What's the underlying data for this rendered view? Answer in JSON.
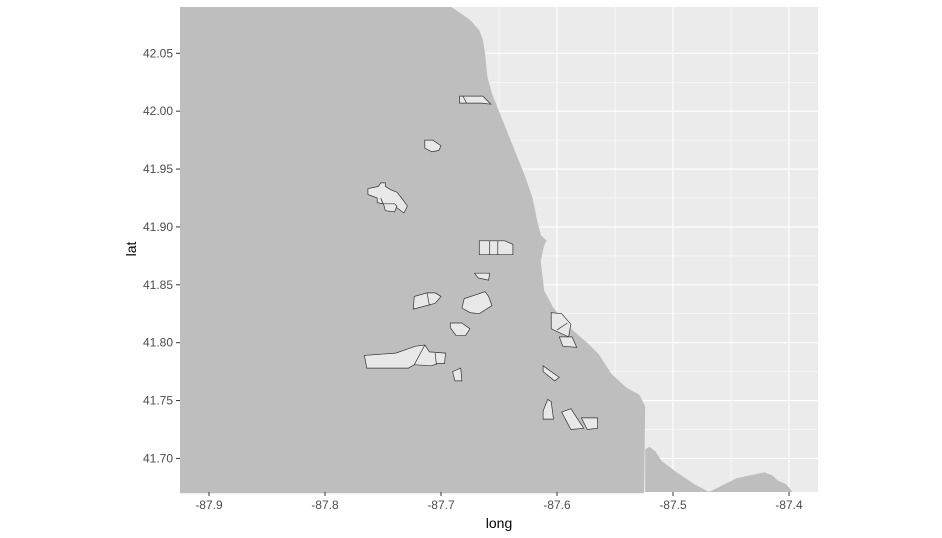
{
  "chart_data": {
    "type": "map",
    "title": "",
    "xlabel": "long",
    "ylabel": "lat",
    "xlim": [
      -87.925,
      -87.375
    ],
    "ylim": [
      41.671,
      42.09
    ],
    "x_ticks": [
      -87.9,
      -87.8,
      -87.7,
      -87.6,
      -87.5,
      -87.4
    ],
    "x_tick_labels": [
      "-87.9",
      "-87.8",
      "-87.7",
      "-87.6",
      "-87.5",
      "-87.4"
    ],
    "y_ticks": [
      41.7,
      41.75,
      41.8,
      41.85,
      41.9,
      41.95,
      42.0,
      42.05
    ],
    "y_tick_labels": [
      "41.70",
      "41.75",
      "41.80",
      "41.85",
      "41.90",
      "41.95",
      "42.00",
      "42.05"
    ],
    "grid": true,
    "colors": {
      "panel_background": "#ebebeb",
      "gridline": "#ffffff",
      "land_fill": "#bebebe",
      "region_fill": "#e8e8e8",
      "region_outline": "#333333",
      "tick_label": "#4d4d4d",
      "axis_title": "#000000"
    },
    "land": [
      [
        -87.925,
        42.09
      ],
      [
        -87.691,
        42.09
      ],
      [
        -87.675,
        42.079
      ],
      [
        -87.667,
        42.07
      ],
      [
        -87.664,
        42.062
      ],
      [
        -87.662,
        42.05
      ],
      [
        -87.66,
        42.03
      ],
      [
        -87.656,
        42.015
      ],
      [
        -87.65,
        42.0
      ],
      [
        -87.638,
        41.97
      ],
      [
        -87.628,
        41.945
      ],
      [
        -87.621,
        41.925
      ],
      [
        -87.617,
        41.905
      ],
      [
        -87.614,
        41.893
      ],
      [
        -87.609,
        41.888
      ],
      [
        -87.611,
        41.884
      ],
      [
        -87.612,
        41.88
      ],
      [
        -87.614,
        41.87
      ],
      [
        -87.611,
        41.845
      ],
      [
        -87.603,
        41.83
      ],
      [
        -87.589,
        41.813
      ],
      [
        -87.574,
        41.8
      ],
      [
        -87.564,
        41.79
      ],
      [
        -87.553,
        41.773
      ],
      [
        -87.54,
        41.761
      ],
      [
        -87.529,
        41.755
      ],
      [
        -87.524,
        41.745
      ],
      [
        -87.525,
        41.67
      ],
      [
        -87.925,
        41.67
      ]
    ],
    "second_land": [
      [
        -87.524,
        41.708
      ],
      [
        -87.52,
        41.71
      ],
      [
        -87.515,
        41.706
      ],
      [
        -87.51,
        41.698
      ],
      [
        -87.497,
        41.688
      ],
      [
        -87.482,
        41.678
      ],
      [
        -87.469,
        41.671
      ],
      [
        -87.455,
        41.678
      ],
      [
        -87.445,
        41.683
      ],
      [
        -87.421,
        41.688
      ],
      [
        -87.414,
        41.685
      ],
      [
        -87.41,
        41.681
      ],
      [
        -87.403,
        41.678
      ],
      [
        -87.4,
        41.675
      ],
      [
        -87.397,
        41.671
      ],
      [
        -87.524,
        41.671
      ]
    ],
    "regions": [
      [
        [
          -87.684,
          42.013
        ],
        [
          -87.684,
          42.007
        ],
        [
          -87.665,
          42.007
        ],
        [
          -87.657,
          42.006
        ],
        [
          -87.664,
          42.013
        ]
      ],
      [
        [
          -87.714,
          41.975
        ],
        [
          -87.714,
          41.968
        ],
        [
          -87.708,
          41.965
        ],
        [
          -87.702,
          41.966
        ],
        [
          -87.7,
          41.97
        ],
        [
          -87.707,
          41.975
        ]
      ],
      [
        [
          -87.763,
          41.933
        ],
        [
          -87.763,
          41.928
        ],
        [
          -87.755,
          41.925
        ],
        [
          -87.755,
          41.921
        ],
        [
          -87.75,
          41.92
        ],
        [
          -87.74,
          41.918
        ],
        [
          -87.732,
          41.912
        ],
        [
          -87.729,
          41.918
        ],
        [
          -87.734,
          41.925
        ],
        [
          -87.738,
          41.93
        ],
        [
          -87.743,
          41.932
        ],
        [
          -87.748,
          41.935
        ],
        [
          -87.748,
          41.938
        ],
        [
          -87.752,
          41.938
        ],
        [
          -87.754,
          41.935
        ]
      ],
      [
        [
          -87.752,
          41.925
        ],
        [
          -87.749,
          41.918
        ],
        [
          -87.748,
          41.914
        ],
        [
          -87.74,
          41.913
        ],
        [
          -87.738,
          41.918
        ],
        [
          -87.74,
          41.92
        ],
        [
          -87.75,
          41.92
        ]
      ],
      [
        [
          -87.667,
          41.888
        ],
        [
          -87.667,
          41.876
        ],
        [
          -87.638,
          41.876
        ],
        [
          -87.638,
          41.885
        ],
        [
          -87.645,
          41.888
        ]
      ],
      [
        [
          -87.671,
          41.86
        ],
        [
          -87.668,
          41.856
        ],
        [
          -87.659,
          41.854
        ],
        [
          -87.658,
          41.86
        ]
      ],
      [
        [
          -87.723,
          41.84
        ],
        [
          -87.724,
          41.829
        ],
        [
          -87.705,
          41.834
        ],
        [
          -87.7,
          41.84
        ],
        [
          -87.705,
          41.843
        ],
        [
          -87.712,
          41.843
        ]
      ],
      [
        [
          -87.68,
          41.838
        ],
        [
          -87.682,
          41.83
        ],
        [
          -87.675,
          41.826
        ],
        [
          -87.667,
          41.825
        ],
        [
          -87.656,
          41.832
        ],
        [
          -87.659,
          41.84
        ],
        [
          -87.662,
          41.844
        ]
      ],
      [
        [
          -87.692,
          41.817
        ],
        [
          -87.692,
          41.813
        ],
        [
          -87.687,
          41.806
        ],
        [
          -87.679,
          41.806
        ],
        [
          -87.675,
          41.812
        ],
        [
          -87.682,
          41.817
        ]
      ],
      [
        [
          -87.766,
          41.789
        ],
        [
          -87.764,
          41.778
        ],
        [
          -87.728,
          41.778
        ],
        [
          -87.723,
          41.781
        ],
        [
          -87.708,
          41.78
        ],
        [
          -87.703,
          41.782
        ],
        [
          -87.697,
          41.782
        ],
        [
          -87.696,
          41.791
        ],
        [
          -87.71,
          41.792
        ],
        [
          -87.714,
          41.798
        ],
        [
          -87.722,
          41.797
        ],
        [
          -87.739,
          41.791
        ]
      ],
      [
        [
          -87.69,
          41.775
        ],
        [
          -87.688,
          41.767
        ],
        [
          -87.682,
          41.767
        ],
        [
          -87.683,
          41.778
        ]
      ],
      [
        [
          -87.612,
          41.78
        ],
        [
          -87.612,
          41.775
        ],
        [
          -87.602,
          41.767
        ],
        [
          -87.598,
          41.77
        ]
      ],
      [
        [
          -87.605,
          41.826
        ],
        [
          -87.605,
          41.812
        ],
        [
          -87.59,
          41.805
        ],
        [
          -87.588,
          41.816
        ],
        [
          -87.596,
          41.825
        ]
      ],
      [
        [
          -87.598,
          41.805
        ],
        [
          -87.595,
          41.797
        ],
        [
          -87.583,
          41.796
        ],
        [
          -87.587,
          41.805
        ]
      ],
      [
        [
          -87.612,
          41.741
        ],
        [
          -87.612,
          41.734
        ],
        [
          -87.603,
          41.734
        ],
        [
          -87.605,
          41.749
        ],
        [
          -87.608,
          41.751
        ]
      ],
      [
        [
          -87.596,
          41.74
        ],
        [
          -87.588,
          41.725
        ],
        [
          -87.577,
          41.726
        ],
        [
          -87.588,
          41.743
        ]
      ],
      [
        [
          -87.579,
          41.735
        ],
        [
          -87.574,
          41.725
        ],
        [
          -87.565,
          41.726
        ],
        [
          -87.565,
          41.735
        ]
      ]
    ],
    "region_lines": [
      [
        [
          -87.681,
          42.013
        ],
        [
          -87.678,
          42.007
        ]
      ],
      [
        [
          -87.658,
          41.888
        ],
        [
          -87.658,
          41.876
        ]
      ],
      [
        [
          -87.651,
          41.888
        ],
        [
          -87.651,
          41.876
        ]
      ],
      [
        [
          -87.712,
          41.843
        ],
        [
          -87.71,
          41.832
        ]
      ],
      [
        [
          -87.723,
          41.781
        ],
        [
          -87.714,
          41.798
        ]
      ],
      [
        [
          -87.705,
          41.791
        ],
        [
          -87.704,
          41.781
        ]
      ],
      [
        [
          -87.591,
          41.817
        ],
        [
          -87.6,
          41.811
        ]
      ]
    ]
  }
}
